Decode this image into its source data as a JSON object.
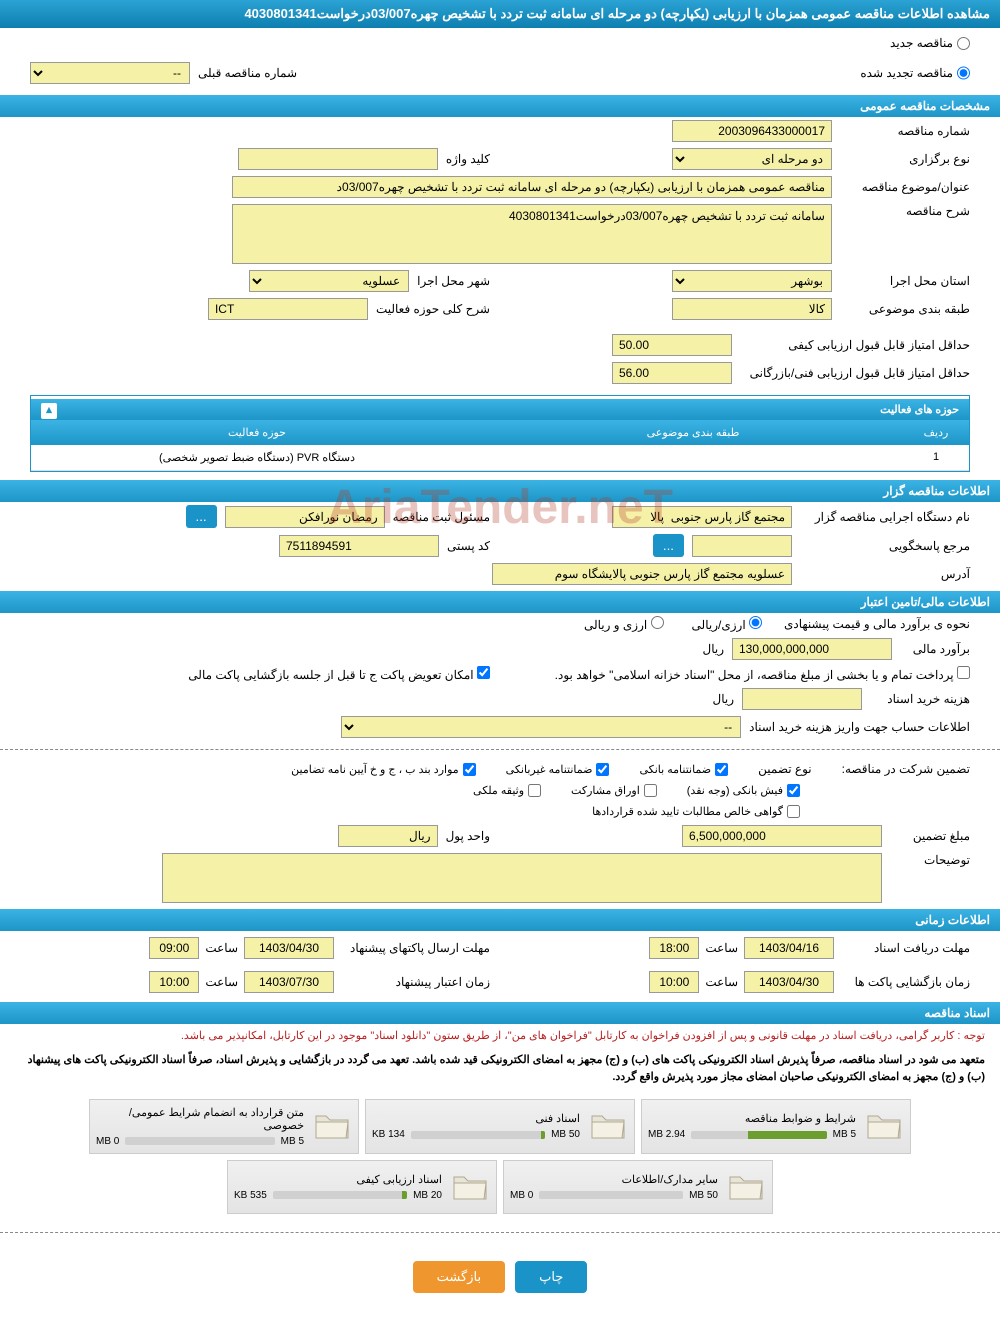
{
  "page_title": "مشاهده اطلاعات مناقصه عمومی همزمان با ارزیابی (یکپارچه) دو مرحله ای سامانه ثبت تردد با تشخیص چهره03/007درخواست4030801341",
  "radio": {
    "new_tender": "مناقصه جدید",
    "renewed_tender": "مناقصه تجدید شده",
    "prev_number_label": "شماره مناقصه قبلی",
    "prev_number_value": "--"
  },
  "sections": {
    "general": "مشخصات مناقصه عمومی",
    "organizer": "اطلاعات مناقصه گزار",
    "financial": "اطلاعات مالی/تامین اعتبار",
    "timing": "اطلاعات زمانی",
    "documents": "اسناد مناقصه",
    "activities": "حوزه های فعالیت"
  },
  "general": {
    "tender_no_label": "شماره مناقصه",
    "tender_no": "2003096433000017",
    "holding_type_label": "نوع برگزاری",
    "holding_type": "دو مرحله ای",
    "keyword_label": "کلید واژه",
    "keyword": "",
    "subject_label": "عنوان/موضوع مناقصه",
    "subject": "مناقصه عمومی همزمان با ارزیابی (یکپارچه) دو مرحله ای سامانه ثبت تردد با تشخیص چهره03/007د",
    "description_label": "شرح مناقصه",
    "description": "سامانه ثبت تردد با تشخیص چهره03/007درخواست4030801341",
    "province_label": "استان محل اجرا",
    "province": "بوشهر",
    "city_label": "شهر محل اجرا",
    "city": "عسلویه",
    "category_label": "طبقه بندی موضوعی",
    "category": "کالا",
    "activity_desc_label": "شرح کلی حوزه فعالیت",
    "activity_desc": "ICT",
    "min_quality_label": "حداقل امتیاز قابل قبول ارزیابی کیفی",
    "min_quality": "50.00",
    "min_tech_label": "حداقل امتیاز قابل قبول ارزیابی فنی/بازرگانی",
    "min_tech": "56.00"
  },
  "activities_table": {
    "col_row": "ردیف",
    "col_category": "طبقه بندی موضوعی",
    "col_field": "حوزه فعالیت",
    "rows": [
      {
        "row": "1",
        "category": "",
        "field": "دستگاه PVR (دستگاه ضبط تصویر شخصی)"
      }
    ]
  },
  "organizer": {
    "exec_org_label": "نام دستگاه اجرایی مناقصه گزار",
    "exec_org": "مجتمع گاز پارس جنوبی  پالا",
    "reg_officer_label": "مسئول ثبت مناقصه",
    "reg_officer": "رمضان نورافکن",
    "more_btn": "...",
    "responder_label": "مرجع پاسخگویی",
    "responder": "",
    "postal_label": "کد پستی",
    "postal": "7511894591",
    "address_label": "آدرس",
    "address": "عسلویه مجتمع گاز پارس جنوبی پالایشگاه سوم"
  },
  "financial": {
    "estimate_label": "نحوه ی برآورد مالی و قیمت پیشنهادی",
    "currency_rial": "ارزی/ریالی",
    "currency_mix": "ارزی و ریالی",
    "estimate_amount_label": "برآورد مالی",
    "estimate_amount": "130,000,000,000",
    "rial": "ریال",
    "payment_note": "پرداخت تمام و یا بخشی از مبلغ مناقصه، از محل \"اسناد خزانه اسلامی\" خواهد بود.",
    "packet_swap": "امکان تعویض پاکت ج تا قبل از جلسه بازگشایی پاکت مالی",
    "doc_fee_label": "هزینه خرید اسناد",
    "doc_fee": "",
    "account_label": "اطلاعات حساب جهت واریز هزینه خرید اسناد",
    "account": "--",
    "participation_label": "تضمین شرکت در مناقصه:",
    "guarantee_type_label": "نوع تضمین",
    "bank_guarantee": "ضمانتنامه بانکی",
    "nonbank_guarantee": "ضمانتنامه غیربانکی",
    "regulations": "موارد بند ب ، ج و خ آیین نامه تضامین",
    "bank_receipt": "فیش بانکی (وجه نقد)",
    "bonds": "اوراق مشارکت",
    "property": "وثیقه ملکی",
    "approved_claims": "گواهی خالص مطالبات تایید شده قراردادها",
    "guarantee_amount_label": "مبلغ تضمین",
    "guarantee_amount": "6,500,000,000",
    "currency_unit_label": "واحد پول",
    "currency_unit": "ریال",
    "notes_label": "توضیحات",
    "notes": ""
  },
  "timing": {
    "doc_deadline_label": "مهلت دریافت اسناد",
    "doc_deadline_date": "1403/04/16",
    "doc_deadline_time": "18:00",
    "bid_deadline_label": "مهلت ارسال پاکتهای پیشنهاد",
    "bid_deadline_date": "1403/04/30",
    "bid_deadline_time": "09:00",
    "opening_label": "زمان بازگشایی پاکت ها",
    "opening_date": "1403/04/30",
    "opening_time": "10:00",
    "validity_label": "زمان اعتبار پیشنهاد",
    "validity_date": "1403/07/30",
    "validity_time": "10:00",
    "time_label": "ساعت"
  },
  "documents": {
    "note1": "توجه : کاربر گرامی، دریافت اسناد در مهلت قانونی و پس از افزودن فراخوان به کارتابل \"فراخوان های من\"، از طریق ستون \"دانلود اسناد\" موجود در این کارتابل، امکانپذیر می باشد.",
    "note2": "متعهد می شود در اسناد مناقصه، صرفاً پذیرش اسناد الکترونیکی پاکت های (ب) و (ج) مجهز به امضای الکترونیکی قید شده باشد. تعهد می گردد در بازگشایی و پذیرش اسناد، صرفاً اسناد الکترونیکی پاکت های پیشنهاد (ب) و (ج) مجهز به امضای الکترونیکی صاحبان امضای مجاز مورد پذیرش واقع گردد.",
    "files": [
      {
        "title": "شرایط و ضوابط مناقصه",
        "size": "2.94 MB",
        "max": "5 MB",
        "pct": 58
      },
      {
        "title": "اسناد فنی",
        "size": "134 KB",
        "max": "50 MB",
        "pct": 3
      },
      {
        "title": "متن قرارداد به انضمام شرایط عمومی/خصوصی",
        "size": "0 MB",
        "max": "5 MB",
        "pct": 0
      },
      {
        "title": "سایر مدارک/اطلاعات",
        "size": "0 MB",
        "max": "50 MB",
        "pct": 0
      },
      {
        "title": "اسناد ارزیابی کیفی",
        "size": "535 KB",
        "max": "20 MB",
        "pct": 4
      }
    ]
  },
  "buttons": {
    "print": "چاپ",
    "back": "بازگشت"
  },
  "watermark": "AriaTender.neT",
  "colors": {
    "header_bg": "#1d95c6",
    "yellow": "#f5f2a8",
    "btn_blue": "#1a93c8",
    "btn_orange": "#f0962e"
  }
}
